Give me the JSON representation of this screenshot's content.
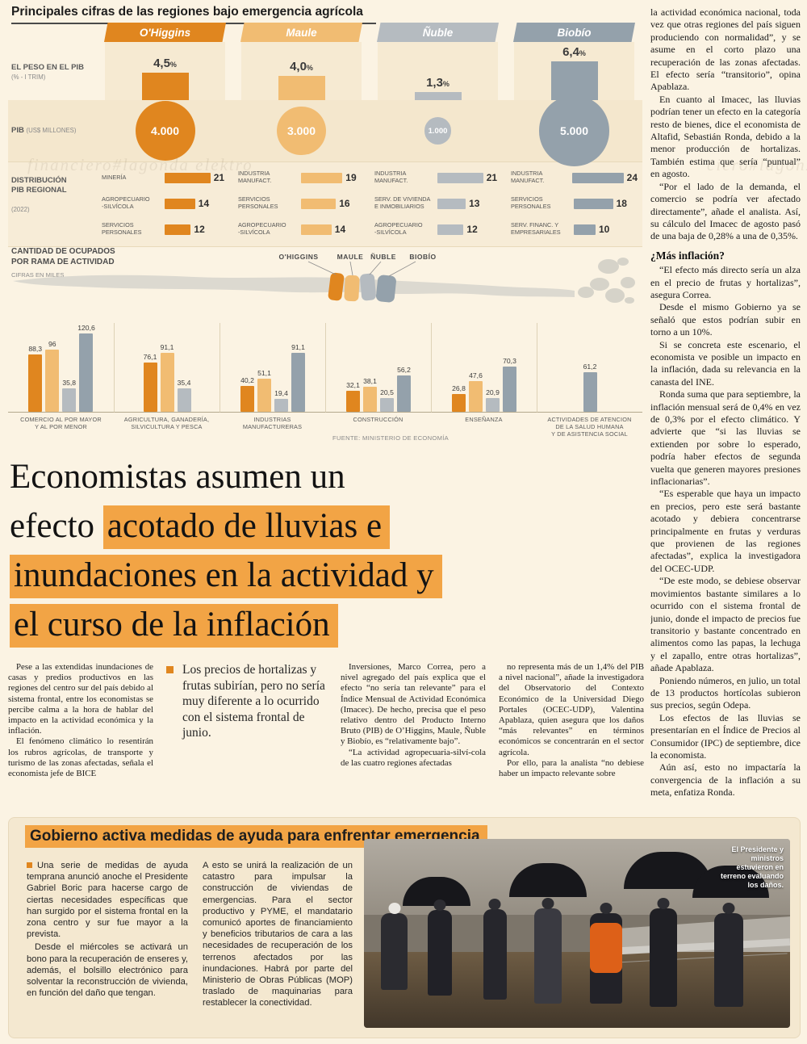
{
  "page": {
    "watermark_left": "financiero#lagonda elektro",
    "watermark_right": "ciero#lagonza"
  },
  "infographic": {
    "title": "Principales cifras de las regiones bajo emergencia agrícola",
    "row_labels": {
      "peso_main": "EL PESO EN EL PIB",
      "peso_sub": "(% - I TRIM)",
      "pib_main": "PIB",
      "pib_sub": "(US$ MILLONES)",
      "dist_main": "DISTRIBUCIÓN\nPIB REGIONAL",
      "dist_sub": "(2022)"
    },
    "map_labels": [
      "O'HIGGINS",
      "MAULE",
      "ÑUBLE",
      "BIOBÍO"
    ],
    "ocupados_title": "CANTIDAD DE OCUPADOS\nPOR RAMA DE ACTIVIDAD",
    "ocupados_sub": "CIFRAS EN MILES",
    "regions": [
      {
        "name": "O'Higgins",
        "color": "#e0861f",
        "peso": "4,5",
        "peso_unit": "%",
        "peso_value": 4.5,
        "pib": "4.000",
        "pib_value": 4000,
        "dist": [
          {
            "label": "MINERÍA",
            "value": 21
          },
          {
            "label": "AGROPECUARIO\n-SILVÍCOLA",
            "value": 14
          },
          {
            "label": "SERVICIOS\nPERSONALES",
            "value": 12
          }
        ]
      },
      {
        "name": "Maule",
        "color": "#f1bc72",
        "peso": "4,0",
        "peso_unit": "%",
        "peso_value": 4.0,
        "pib": "3.000",
        "pib_value": 3000,
        "dist": [
          {
            "label": "INDUSTRIA\nMANUFACT.",
            "value": 19
          },
          {
            "label": "SERVICIOS\nPERSONALES",
            "value": 16
          },
          {
            "label": "AGROPECUARIO\n-SILVÍCOLA",
            "value": 14
          }
        ]
      },
      {
        "name": "Ñuble",
        "color": "#b5bbc0",
        "peso": "1,3",
        "peso_unit": "%",
        "peso_value": 1.3,
        "pib": "1.000",
        "pib_value": 1000,
        "dist": [
          {
            "label": "INDUSTRIA\nMANUFACT.",
            "value": 21
          },
          {
            "label": "SERV. DE VIVIENDA\nE INMOBILIARIOS",
            "value": 13
          },
          {
            "label": "AGROPECUARIO\n-SILVÍCOLA",
            "value": 12
          }
        ]
      },
      {
        "name": "Biobío",
        "color": "#94a1ab",
        "peso": "6,4",
        "peso_unit": "%",
        "peso_value": 6.4,
        "pib": "5.000",
        "pib_value": 5000,
        "dist": [
          {
            "label": "INDUSTRIA\nMANUFACT.",
            "value": 24
          },
          {
            "label": "SERVICIOS\nPERSONALES",
            "value": 18
          },
          {
            "label": "SERV. FINANC. Y\nEMPRESARIALES",
            "value": 10
          }
        ]
      }
    ]
  },
  "chart_data": {
    "type": "bar",
    "title": "CANTIDAD DE OCUPADOS POR RAMA DE ACTIVIDAD (CIFRAS EN MILES)",
    "categories": [
      "COMERCIO AL POR MAYOR\nY AL POR MENOR",
      "AGRICULTURA, GANADERÍA,\nSILVICULTURA Y PESCA",
      "INDUSTRIAS\nMANUFACTURERAS",
      "CONSTRUCCIÓN",
      "ENSEÑANZA",
      "ACTIVIDADES DE ATENCION\nDE LA SALUD HUMANA\nY DE ASISTENCIA SOCIAL"
    ],
    "series": [
      {
        "name": "O'Higgins",
        "values": [
          88.3,
          76.1,
          40.2,
          32.1,
          26.8,
          null
        ]
      },
      {
        "name": "Maule",
        "values": [
          96,
          91.1,
          51.1,
          38.1,
          47.6,
          null
        ]
      },
      {
        "name": "Ñuble",
        "values": [
          35.8,
          35.4,
          19.4,
          20.5,
          20.9,
          null
        ]
      },
      {
        "name": "Biobío",
        "values": [
          120.6,
          null,
          91.1,
          56.2,
          70.3,
          61.2
        ]
      }
    ],
    "ylim": [
      0,
      130
    ],
    "grid": false,
    "source": "FUENTE: MINISTERIO DE ECONOMÍA"
  },
  "article": {
    "headline": {
      "line1": "Economistas asumen un",
      "line2_plain": "efecto ",
      "line2_hl": "acotado de lluvias e",
      "line3_hl": "inundaciones en la actividad y",
      "line4_hl": "el curso de la inflación"
    },
    "col1": [
      "Pese a las extendidas inundaciones de casas y predios productivos en las regiones del centro sur del país debido al sistema frontal, entre los economistas se percibe calma a la hora de hablar del impacto en la actividad económica y la inflación.",
      "El fenómeno climático lo resentirán los rubros agrícolas, de transporte y turismo de las zonas afectadas, señala el economista jefe de BICE"
    ],
    "pullquote": "Los precios de hortalizas y frutas subirían, pero no sería muy diferente a lo ocurrido con el sistema frontal de junio.",
    "col3": [
      "Inversiones, Marco Correa, pero a nivel agregado del país explica que el efecto “no sería tan relevante” para el Índice Mensual de Actividad Económica (Imacec). De hecho, precisa que el peso relativo dentro del Producto Interno Bruto (PIB) de O’Higgins, Maule, Ñuble y Biobío, es “relativamente bajo”.",
      "“La actividad agropecuaria-silví-cola de las cuatro regiones afectadas"
    ],
    "col4": [
      "no representa más de un 1,4% del PIB a nivel nacional”, añade la investigadora del Observatorio del Contexto Económico de la Universidad Diego Portales (OCEC-UDP), Valentina Apablaza, quien asegura que  los daños “más relevantes” en términos económicos se concentrarán en el sector agrícola.",
      "Por ello, para la analista “no debiese haber un impacto relevante sobre"
    ],
    "right_col": [
      {
        "text": "la actividad económica nacional, toda vez que otras regiones del país siguen produciendo con normalidad”, y se asume en el corto plazo una recuperación de las zonas afectadas. El efecto sería “transitorio”, opina Apablaza."
      },
      {
        "text": "En cuanto al Imacec, las lluvias podrían tener un efecto en la categoría resto de bienes, dice el economista de Altafid, Sebastián Ronda, debido a la menor producción de hortalizas. También estima que sería “puntual” en agosto."
      },
      {
        "text": "“Por el lado de la demanda, el comercio se podría ver afectado directamente”, añade el analista. Así, su cálculo del Imacec de agosto pasó de una baja de 0,28% a una de 0,35%."
      },
      {
        "heading": "¿Más inflación?"
      },
      {
        "text": "“El efecto más directo sería un alza en el precio de frutas y hortalizas”, asegura Correa."
      },
      {
        "text": "Desde el mismo Gobierno ya se señaló que estos podrían subir en torno a un 10%."
      },
      {
        "text": "Si se concreta este escenario, el economista ve posible un impacto en la inflación, dada su relevancia en la canasta del INE."
      },
      {
        "text": "Ronda suma que para septiembre, la inflación mensual será de 0,4% en vez de 0,3% por el efecto climático. Y advierte que “si las lluvias se extienden por sobre lo esperado, podría haber efectos de segunda vuelta que generen mayores presiones inflacionarias”."
      },
      {
        "text": "“Es esperable que haya un impacto en precios, pero este será bastante acotado y debiera concentrarse principalmente en frutas y verduras que provienen de las regiones afectadas”, explica la investigadora del OCEC-UDP."
      },
      {
        "text": "“De este modo, se debiese observar movimientos bastante similares a lo ocurrido con el sistema frontal de junio, donde el impacto de precios fue transitorio y bastante concentrado en alimentos como las papas, la lechuga y el zapallo, entre otras hortalizas”, añade Apablaza."
      },
      {
        "text": "Poniendo números, en julio, un total de 13 productos hortícolas subieron sus precios, según Odepa."
      },
      {
        "text": "Los efectos de las lluvias se presentarían en el Índice de Precios al Consumidor (IPC) de septiembre, dice la economista."
      },
      {
        "text": "Aún así, esto no impactaría la convergencia de la inflación a su meta, enfatiza Ronda."
      }
    ]
  },
  "box": {
    "title": "Gobierno activa medidas de ayuda para enfrentar emergencia",
    "col1": [
      "Una serie de medidas de ayuda temprana anunció anoche el Presidente Gabriel Boric para hacerse cargo de ciertas necesidades específicas que han surgido por el sistema frontal en la zona centro y sur fue mayor a la prevista.",
      "Desde el miércoles se activará un bono para la recuperación de enseres y, además, el bolsillo electrónico para solventar la reconstrucción de vivienda, en función del daño que tengan."
    ],
    "col2": [
      "A esto se unirá la realización de un catastro para impulsar la construcción de viviendas de emergencias. Para el sector productivo y PYME, el mandatario comunicó aportes de financiamiento y beneficios tributarios de cara a las necesidades de recuperación de los terrenos afectados por las inundaciones. Habrá por parte del Ministerio de Obras Públicas (MOP) traslado de maquinarias para restablecer la conectividad."
    ],
    "photo_caption": "El Presidente y ministros estuvieron en terreno evaluando los daños."
  }
}
